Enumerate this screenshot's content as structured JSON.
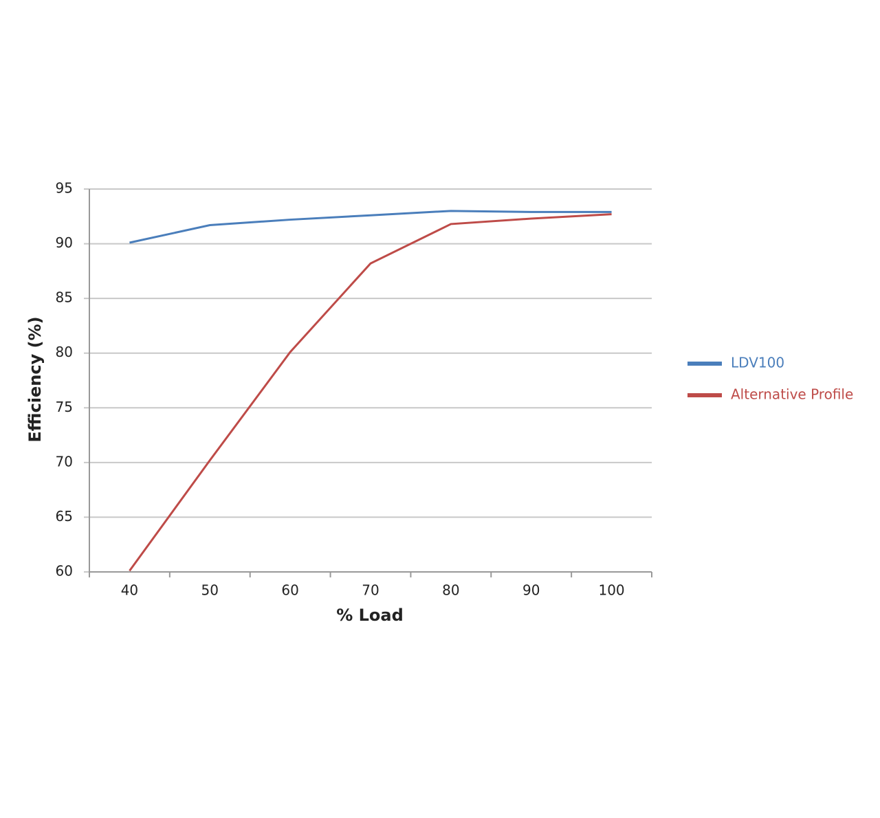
{
  "chart_data": {
    "type": "line",
    "x_label": "% Load",
    "y_label": "Efficiency (%)",
    "categories": [
      "40",
      "50",
      "60",
      "70",
      "80",
      "90",
      "100"
    ],
    "series": [
      {
        "name": "LDV100",
        "color": "#4a7ebb",
        "values": [
          90.1,
          91.7,
          92.2,
          92.6,
          93.0,
          92.9,
          92.9
        ]
      },
      {
        "name": "Alternative Profile",
        "color": "#be4b48",
        "values": [
          60.1,
          70.2,
          80.1,
          88.2,
          91.8,
          92.3,
          92.7
        ]
      }
    ],
    "ylim": [
      60,
      95
    ],
    "yticks": [
      60,
      65,
      70,
      75,
      80,
      85,
      90,
      95
    ],
    "grid": true,
    "legend": "right"
  }
}
